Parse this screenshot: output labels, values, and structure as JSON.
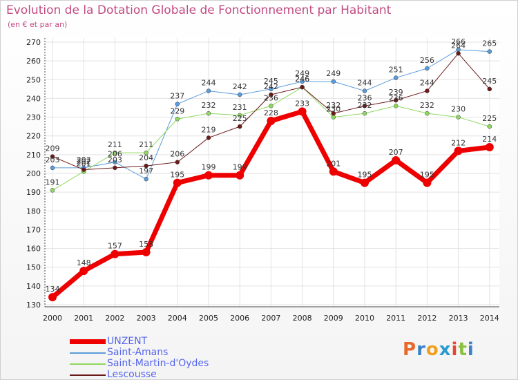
{
  "header": {
    "title": "Evolution de la Dotation Globale de Fonctionnement par Habitant",
    "subtitle": "(en € et par an)"
  },
  "logo": {
    "text": "Proxiti",
    "colors": [
      "#e8692a",
      "#3b82c4",
      "#f0a020",
      "#2a9ad0",
      "#e84830",
      "#8ac040",
      "#3b82c4"
    ]
  },
  "chart_data": {
    "type": "line",
    "title": "Evolution de la Dotation Globale de Fonctionnement par Habitant",
    "subtitle": "(en € et par an)",
    "x": [
      "2000",
      "2001",
      "2002",
      "2003",
      "2004",
      "2005",
      "2006",
      "2007",
      "2008",
      "2009",
      "2010",
      "2011",
      "2012",
      "2013",
      "2014"
    ],
    "ylim": [
      130,
      270
    ],
    "yticks": [
      130,
      140,
      150,
      160,
      170,
      180,
      190,
      200,
      210,
      220,
      230,
      240,
      250,
      260,
      270
    ],
    "grid": true,
    "legend_position": "bottom-left",
    "series": [
      {
        "name": "UNZENT",
        "color": "#ee0000",
        "width": 7,
        "values": [
          134,
          148,
          157,
          158,
          195,
          199,
          199,
          228,
          233,
          201,
          195,
          207,
          195,
          212,
          214
        ]
      },
      {
        "name": "Saint-Amans",
        "color": "#5a9bd8",
        "width": 1,
        "values": [
          203,
          203,
          206,
          197,
          237,
          244,
          242,
          245,
          249,
          249,
          244,
          251,
          256,
          266,
          265
        ]
      },
      {
        "name": "Saint-Martin-d'Oydes",
        "color": "#8fd860",
        "width": 1,
        "values": [
          191,
          201,
          211,
          211,
          229,
          232,
          231,
          236,
          246,
          230,
          232,
          236,
          232,
          230,
          225
        ]
      },
      {
        "name": "Lescousse",
        "color": "#6b1a1a",
        "width": 1,
        "values": [
          209,
          202,
          203,
          204,
          206,
          219,
          225,
          242,
          246,
          232,
          236,
          239,
          244,
          264,
          245
        ]
      }
    ]
  }
}
